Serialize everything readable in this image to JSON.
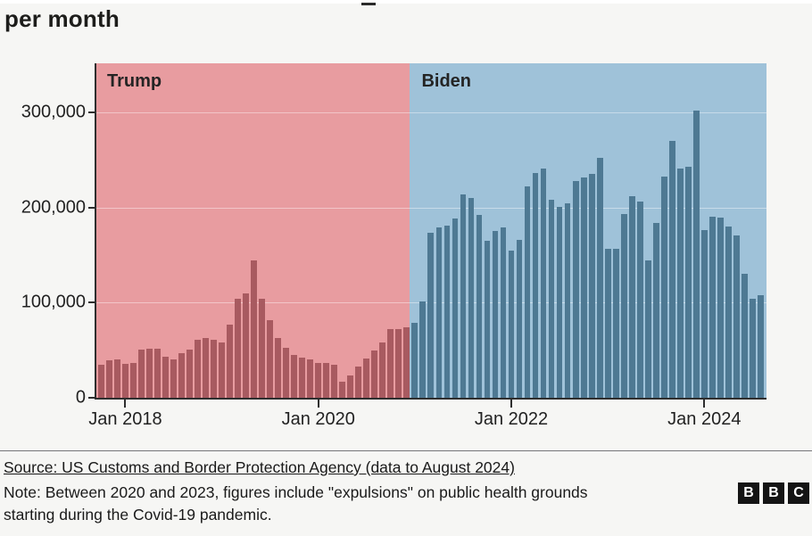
{
  "header": {
    "title_visible_line": "per month"
  },
  "colors": {
    "page_bg": "#f6f6f4",
    "trump_region_bg": "#e89ca0",
    "trump_bar": "#a85a60",
    "biden_region_bg": "#9fc2d9",
    "biden_bar": "#4e7993",
    "axis": "#2e2e2e",
    "text": "#1d1d1b"
  },
  "chart_data": {
    "type": "bar",
    "title": "per month",
    "ylabel": "",
    "xlabel": "",
    "ylim": [
      0,
      351500
    ],
    "grid": "faint horizontal lines at y ticks",
    "legend_position": "in-plot region labels",
    "months": [
      "Oct 2017",
      "Nov 2017",
      "Dec 2017",
      "Jan 2018",
      "Feb 2018",
      "Mar 2018",
      "Apr 2018",
      "May 2018",
      "Jun 2018",
      "Jul 2018",
      "Aug 2018",
      "Sep 2018",
      "Oct 2018",
      "Nov 2018",
      "Dec 2018",
      "Jan 2019",
      "Feb 2019",
      "Mar 2019",
      "Apr 2019",
      "May 2019",
      "Jun 2019",
      "Jul 2019",
      "Aug 2019",
      "Sep 2019",
      "Oct 2019",
      "Nov 2019",
      "Dec 2019",
      "Jan 2020",
      "Feb 2020",
      "Mar 2020",
      "Apr 2020",
      "May 2020",
      "Jun 2020",
      "Jul 2020",
      "Aug 2020",
      "Sep 2020",
      "Oct 2020",
      "Nov 2020",
      "Dec 2020",
      "Jan 2021",
      "Feb 2021",
      "Mar 2021",
      "Apr 2021",
      "May 2021",
      "Jun 2021",
      "Jul 2021",
      "Aug 2021",
      "Sep 2021",
      "Oct 2021",
      "Nov 2021",
      "Dec 2021",
      "Jan 2022",
      "Feb 2022",
      "Mar 2022",
      "Apr 2022",
      "May 2022",
      "Jun 2022",
      "Jul 2022",
      "Aug 2022",
      "Sep 2022",
      "Oct 2022",
      "Nov 2022",
      "Dec 2022",
      "Jan 2023",
      "Feb 2023",
      "Mar 2023",
      "Apr 2023",
      "May 2023",
      "Jun 2023",
      "Jul 2023",
      "Aug 2023",
      "Sep 2023",
      "Oct 2023",
      "Nov 2023",
      "Dec 2023",
      "Jan 2024",
      "Feb 2024",
      "Mar 2024",
      "Apr 2024",
      "May 2024",
      "Jun 2024",
      "Jul 2024",
      "Aug 2024"
    ],
    "values": [
      34871,
      39051,
      40519,
      35905,
      36751,
      50347,
      51168,
      51862,
      43180,
      40011,
      46719,
      50568,
      60781,
      62469,
      60794,
      58317,
      76545,
      103731,
      109415,
      144116,
      104311,
      81777,
      62707,
      52546,
      45139,
      42643,
      40565,
      36585,
      36687,
      34460,
      17106,
      23237,
      33049,
      40929,
      50014,
      57674,
      71946,
      72113,
      73994,
      78414,
      101099,
      173277,
      178854,
      180641,
      188829,
      213593,
      209840,
      192001,
      164837,
      174845,
      179253,
      154874,
      165902,
      222574,
      235785,
      241136,
      207834,
      200162,
      204087,
      227547,
      231529,
      234896,
      252315,
      156630,
      156138,
      193254,
      211992,
      206701,
      144566,
      183503,
      232963,
      269735,
      240986,
      242418,
      301983,
      176205,
      189913,
      189556,
      179725,
      170723,
      130415,
      104116,
      107473
    ],
    "periods": [
      {
        "label": "Trump",
        "from_index": 0,
        "to_index": 38
      },
      {
        "label": "Biden",
        "from_index": 39,
        "to_index": 82
      }
    ],
    "y_ticks": [
      {
        "value": 0,
        "label": "0"
      },
      {
        "value": 100000,
        "label": "100,000"
      },
      {
        "value": 200000,
        "label": "200,000"
      },
      {
        "value": 300000,
        "label": "300,000"
      }
    ],
    "x_ticks": [
      {
        "index": 3,
        "label": "Jan 2018"
      },
      {
        "index": 27,
        "label": "Jan 2020"
      },
      {
        "index": 51,
        "label": "Jan 2022"
      },
      {
        "index": 75,
        "label": "Jan 2024"
      }
    ]
  },
  "footer": {
    "source": "Source: US Customs and Border Protection Agency (data to August 2024)",
    "note_line1": "Note: Between 2020 and 2023, figures include \"expulsions\" on public health grounds",
    "note_line2": "starting during the Covid-19 pandemic.",
    "logo_letters": [
      "B",
      "B",
      "C"
    ]
  }
}
